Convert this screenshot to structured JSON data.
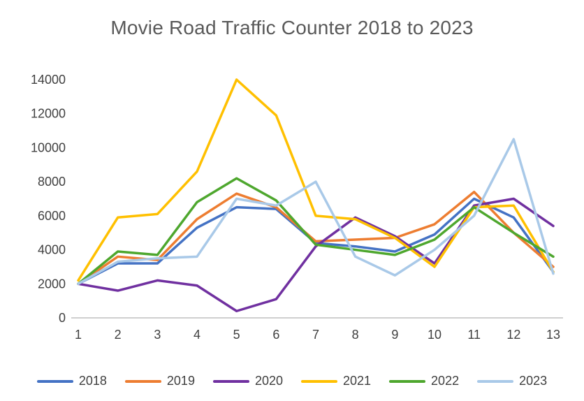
{
  "chart_data": {
    "type": "line",
    "title": "Movie Road Traffic Counter 2018 to 2023",
    "x": [
      1,
      2,
      3,
      4,
      5,
      6,
      7,
      8,
      9,
      10,
      11,
      12,
      13
    ],
    "xlabel": "",
    "ylabel": "",
    "ylim": [
      0,
      14000
    ],
    "ytick_step": 2000,
    "grid": false,
    "legend_position": "bottom",
    "axis_text_color": "#404040",
    "axis_line_color": "#bfbfbf",
    "series": [
      {
        "name": "2018",
        "color": "#4472c4",
        "values": [
          2000,
          3200,
          3200,
          5300,
          6500,
          6400,
          4400,
          4200,
          3900,
          4900,
          7000,
          5900,
          2700
        ]
      },
      {
        "name": "2019",
        "color": "#ed7d31",
        "values": [
          2000,
          3600,
          3400,
          5800,
          7300,
          6500,
          4500,
          4600,
          4700,
          5500,
          7400,
          5000,
          3000
        ]
      },
      {
        "name": "2020",
        "color": "#7030a0",
        "values": [
          2000,
          1600,
          2200,
          1900,
          400,
          1100,
          4200,
          5900,
          4800,
          3200,
          6600,
          7000,
          5400
        ]
      },
      {
        "name": "2021",
        "color": "#ffc000",
        "values": [
          2200,
          5900,
          6100,
          8600,
          14000,
          11900,
          6000,
          5800,
          4700,
          3000,
          6500,
          6600,
          2700
        ]
      },
      {
        "name": "2022",
        "color": "#4ea72e",
        "values": [
          2000,
          3900,
          3700,
          6800,
          8200,
          6900,
          4300,
          4000,
          3700,
          4600,
          6500,
          5000,
          3600
        ]
      },
      {
        "name": "2023",
        "color": "#a9c9e8",
        "values": [
          2000,
          3300,
          3500,
          3600,
          7000,
          6600,
          8000,
          3600,
          2500,
          4000,
          6000,
          10500,
          2600
        ]
      }
    ]
  }
}
